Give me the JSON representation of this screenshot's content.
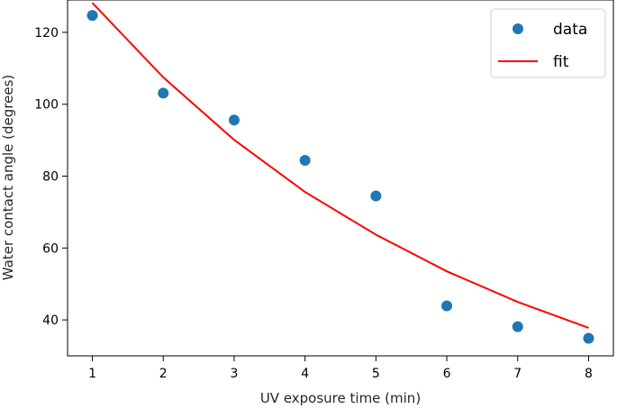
{
  "chart_data": {
    "type": "scatter",
    "title": "",
    "xlabel": "UV exposure time (min)",
    "ylabel": "Water contact angle (degrees)",
    "xlim": [
      0.65,
      8.35
    ],
    "ylim": [
      30,
      129
    ],
    "xticks": [
      1,
      2,
      3,
      4,
      5,
      6,
      7,
      8
    ],
    "yticks": [
      40,
      60,
      80,
      100,
      120
    ],
    "grid": false,
    "legend_position": "top-right",
    "series": [
      {
        "name": "data",
        "kind": "scatter",
        "color": "#1f77b4",
        "x": [
          1,
          2,
          3,
          4,
          5,
          6,
          7,
          8
        ],
        "y": [
          124.7,
          103.1,
          95.6,
          84.4,
          74.5,
          43.9,
          38.1,
          34.9
        ]
      },
      {
        "name": "fit",
        "kind": "line",
        "color": "#ff0000",
        "x": [
          1,
          2,
          3,
          4,
          5,
          6,
          7,
          8
        ],
        "y": [
          128.2,
          107.5,
          90.1,
          75.6,
          63.7,
          53.5,
          45.0,
          37.8
        ]
      }
    ]
  }
}
